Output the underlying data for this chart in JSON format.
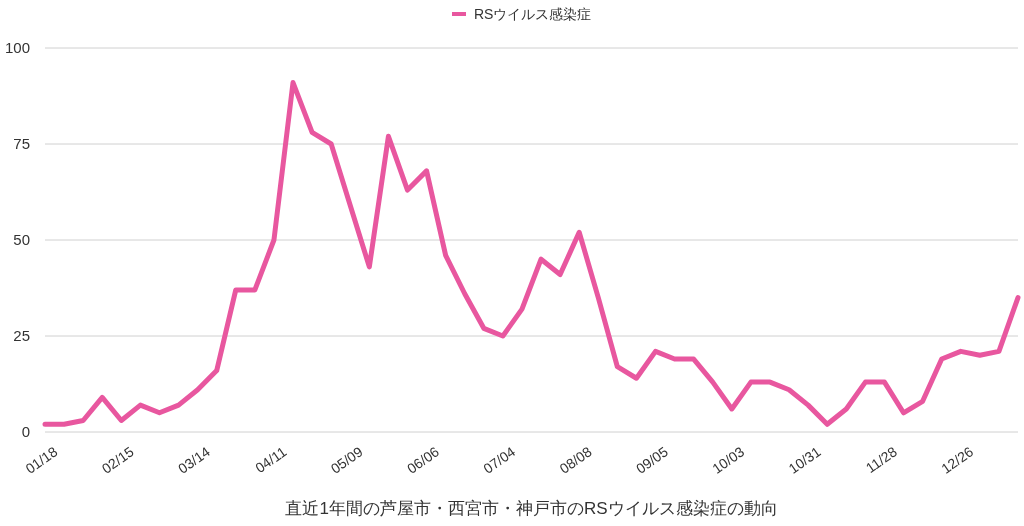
{
  "chart_data": {
    "type": "line",
    "xlabel": "直近1年間の芦屋市・西宮市・神戸市のRSウイルス感染症の動向",
    "categories": [
      "01/18",
      null,
      null,
      null,
      "02/15",
      null,
      null,
      null,
      "03/14",
      null,
      null,
      null,
      "04/11",
      null,
      null,
      null,
      "05/09",
      null,
      null,
      null,
      "06/06",
      null,
      null,
      null,
      "07/04",
      null,
      null,
      null,
      "08/08",
      null,
      null,
      null,
      "09/05",
      null,
      null,
      null,
      "10/03",
      null,
      null,
      null,
      "10/31",
      null,
      null,
      null,
      "11/28",
      null,
      null,
      null,
      "12/26",
      null,
      null,
      null
    ],
    "series": [
      {
        "name": "RSウイルス感染症",
        "color": "#e8579f",
        "values": [
          2,
          2,
          3,
          9,
          3,
          7,
          5,
          7,
          11,
          16,
          37,
          37,
          50,
          91,
          78,
          75,
          59,
          43,
          77,
          63,
          68,
          46,
          36,
          27,
          25,
          32,
          45,
          41,
          52,
          35,
          17,
          14,
          21,
          19,
          19,
          13,
          6,
          13,
          13,
          11,
          7,
          2,
          6,
          13,
          13,
          5,
          8,
          19,
          21,
          20,
          21,
          35
        ]
      }
    ],
    "ylim": [
      0,
      100
    ],
    "yticks": [
      0,
      25,
      50,
      75,
      100
    ],
    "grid": "y",
    "legend": "top",
    "line_style": "solid",
    "marker": "none"
  }
}
